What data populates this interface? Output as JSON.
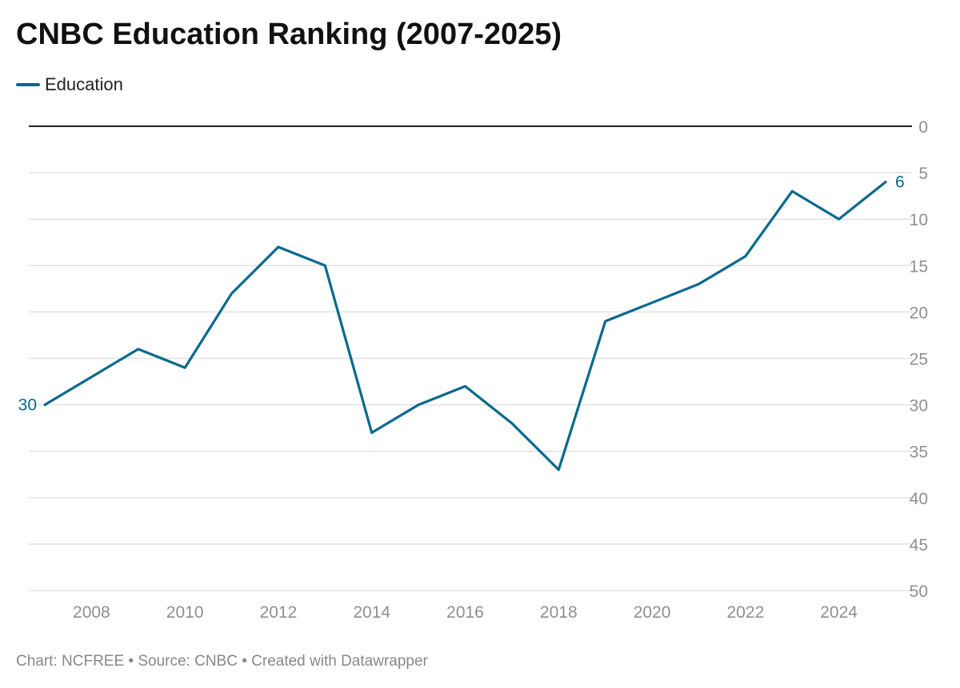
{
  "chart_data": {
    "type": "line",
    "title": "CNBC Education Ranking (2007-2025)",
    "xlabel": "",
    "ylabel": "",
    "x": [
      2007,
      2008,
      2009,
      2010,
      2011,
      2012,
      2013,
      2014,
      2015,
      2016,
      2017,
      2018,
      2019,
      2020,
      2021,
      2022,
      2023,
      2024,
      2025
    ],
    "series": [
      {
        "name": "Education",
        "color": "#09698f",
        "values": [
          30,
          27,
          24,
          26,
          18,
          13,
          15,
          33,
          30,
          28,
          32,
          37,
          21,
          19,
          17,
          14,
          7,
          10,
          6
        ]
      }
    ],
    "xlim": [
      2007,
      2025
    ],
    "ylim": [
      0,
      50
    ],
    "y_reversed": true,
    "x_ticks": [
      "2008",
      "2010",
      "2012",
      "2014",
      "2016",
      "2018",
      "2020",
      "2022",
      "2024"
    ],
    "y_ticks": [
      "0",
      "5",
      "10",
      "15",
      "20",
      "25",
      "30",
      "35",
      "40",
      "45",
      "50"
    ],
    "data_labels": [
      {
        "x": 2007,
        "text": "30",
        "position": "start"
      },
      {
        "x": 2025,
        "text": "6",
        "position": "end"
      }
    ],
    "grid": true,
    "legend_position": "top-left"
  },
  "footer": {
    "text": "Chart: NCFREE • Source: CNBC • Created with Datawrapper"
  }
}
